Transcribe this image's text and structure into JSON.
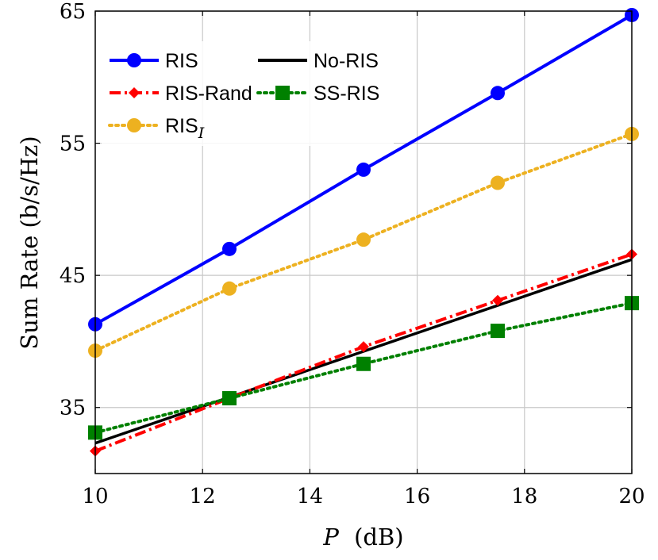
{
  "chart_data": {
    "type": "line",
    "xlabel_var": "P",
    "xlabel_unit": "(dB)",
    "ylabel": "Sum Rate (b/s/Hz)",
    "xlim": [
      10,
      20
    ],
    "ylim": [
      30,
      65
    ],
    "xticks": [
      10,
      12,
      14,
      16,
      18,
      20
    ],
    "yticks": [
      35,
      45,
      55,
      65
    ],
    "grid": true,
    "legend_position": "top-left",
    "series": [
      {
        "name": "RIS",
        "name_sub": "",
        "color": "#0000ff",
        "dash": "solid",
        "marker": "circle",
        "x": [
          10,
          12.5,
          15,
          17.5,
          20
        ],
        "y": [
          41.3,
          47.0,
          53.0,
          58.8,
          64.7
        ]
      },
      {
        "name": "No-RIS",
        "name_sub": "",
        "color": "#000000",
        "dash": "solid",
        "marker": "none",
        "x": [
          10,
          20
        ],
        "y": [
          32.3,
          46.2
        ]
      },
      {
        "name": "RIS-Rand",
        "name_sub": "",
        "color": "#ff0000",
        "dash": "dashdot",
        "marker": "diamond",
        "x": [
          10,
          12.5,
          15,
          17.5,
          20
        ],
        "y": [
          31.7,
          35.7,
          39.6,
          43.1,
          46.6
        ]
      },
      {
        "name": "SS-RIS",
        "name_sub": "",
        "color": "#008000",
        "dash": "dotted",
        "marker": "square",
        "x": [
          10,
          12.5,
          15,
          17.5,
          20
        ],
        "y": [
          33.1,
          35.7,
          38.3,
          40.8,
          42.9
        ]
      },
      {
        "name": "RIS",
        "name_sub": "I",
        "color": "#edb120",
        "dash": "dotted",
        "marker": "circle",
        "x": [
          10,
          12.5,
          15,
          17.5,
          20
        ],
        "y": [
          39.3,
          44.0,
          47.7,
          52.0,
          55.7
        ]
      }
    ]
  }
}
